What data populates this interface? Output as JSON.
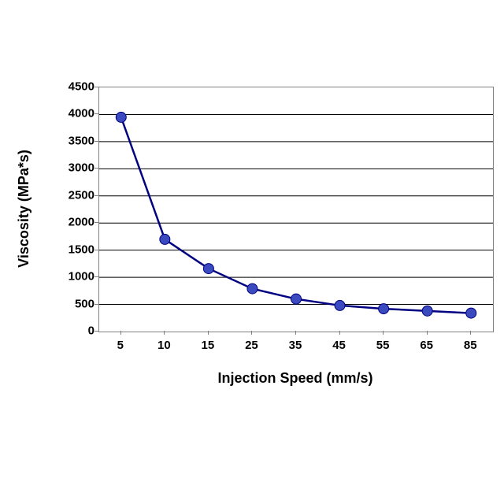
{
  "chart": {
    "type": "line",
    "y_axis_title": "Viscosity (MPa*s)",
    "x_axis_title": "Injection Speed (mm/s)",
    "title_fontsize": 18,
    "tick_fontsize": 15,
    "x_categories": [
      "5",
      "10",
      "15",
      "25",
      "35",
      "45",
      "55",
      "65",
      "85"
    ],
    "y_ticks": [
      0,
      500,
      1000,
      1500,
      2000,
      2500,
      3000,
      3500,
      4000,
      4500
    ],
    "ylim": [
      0,
      4500
    ],
    "values": [
      3950,
      1700,
      1160,
      790,
      600,
      480,
      420,
      380,
      340
    ],
    "line_color": "#000080",
    "line_width": 2.5,
    "marker_fill": "#3b4bbf",
    "marker_stroke": "#000080",
    "marker_radius": 6.5,
    "grid_color": "#000000",
    "border_color": "#808080",
    "background_color": "#ffffff",
    "text_color": "#000000",
    "font_weight": "bold",
    "font_family": "Arial"
  }
}
